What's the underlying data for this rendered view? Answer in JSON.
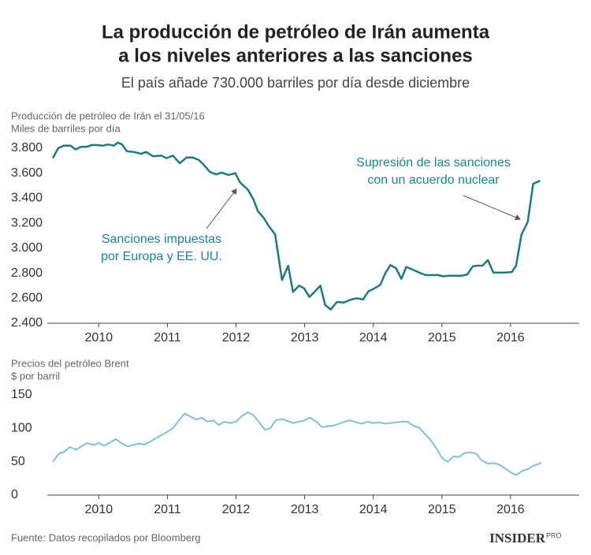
{
  "title": [
    "La producción de petróleo de Irán aumenta",
    "a los niveles anteriores a las sanciones"
  ],
  "subtitle": "El país añade 730.000 barriles por día desde diciembre",
  "chart_data": [
    {
      "type": "line",
      "title": "Producción de petróleo de Irán el 31/05/16",
      "ylabel": "Miles de barriles por día",
      "color": "#1a7c7d",
      "x": [
        2009.33,
        2009.41,
        2009.49,
        2009.59,
        2009.66,
        2009.74,
        2009.82,
        2009.9,
        2009.98,
        2010.06,
        2010.14,
        2010.22,
        2010.28,
        2010.34,
        2010.41,
        2010.51,
        2010.62,
        2010.69,
        2010.79,
        2010.91,
        2010.99,
        2011.08,
        2011.18,
        2011.28,
        2011.37,
        2011.46,
        2011.54,
        2011.62,
        2011.71,
        2011.79,
        2011.89,
        2011.99,
        2012.06,
        2012.17,
        2012.25,
        2012.32,
        2012.4,
        2012.48,
        2012.57,
        2012.67,
        2012.76,
        2012.83,
        2012.92,
        2012.99,
        2013.07,
        2013.15,
        2013.23,
        2013.3,
        2013.38,
        2013.47,
        2013.57,
        2013.68,
        2013.76,
        2013.85,
        2013.93,
        2014.02,
        2014.1,
        2014.18,
        2014.25,
        2014.33,
        2014.41,
        2014.48,
        2014.59,
        2014.67,
        2014.76,
        2014.85,
        2014.94,
        2015.02,
        2015.1,
        2015.2,
        2015.29,
        2015.37,
        2015.45,
        2015.52,
        2015.59,
        2015.67,
        2015.75,
        2015.84,
        2015.93,
        2016.02,
        2016.08,
        2016.16,
        2016.25,
        2016.33,
        2016.43
      ],
      "values": [
        3720,
        3800,
        3820,
        3820,
        3790,
        3810,
        3810,
        3825,
        3825,
        3820,
        3830,
        3820,
        3845,
        3830,
        3775,
        3770,
        3755,
        3770,
        3735,
        3740,
        3720,
        3740,
        3680,
        3725,
        3725,
        3705,
        3660,
        3610,
        3590,
        3605,
        3585,
        3600,
        3525,
        3470,
        3395,
        3295,
        3245,
        3175,
        3110,
        2745,
        2860,
        2650,
        2700,
        2680,
        2610,
        2655,
        2700,
        2545,
        2510,
        2570,
        2565,
        2590,
        2600,
        2590,
        2655,
        2680,
        2705,
        2805,
        2865,
        2840,
        2755,
        2850,
        2825,
        2805,
        2785,
        2785,
        2785,
        2775,
        2780,
        2780,
        2780,
        2790,
        2855,
        2860,
        2860,
        2905,
        2805,
        2805,
        2805,
        2810,
        2860,
        3110,
        3210,
        3515,
        3540
      ],
      "xlim": [
        2009.25,
        2017
      ],
      "xticks": [
        2010,
        2011,
        2012,
        2013,
        2014,
        2015,
        2016
      ],
      "ylim": [
        2400,
        3850
      ],
      "yticks": [
        {
          "value": 2400,
          "label": "2.400"
        },
        {
          "value": 2600,
          "label": "2.600"
        },
        {
          "value": 2800,
          "label": "2.800"
        },
        {
          "value": 3000,
          "label": "3.000"
        },
        {
          "value": 3200,
          "label": "3.200"
        },
        {
          "value": 3400,
          "label": "3.400"
        },
        {
          "value": 3600,
          "label": "3.600"
        },
        {
          "value": 3800,
          "label": "3.800"
        }
      ],
      "annotations": [
        [
          "Sanciones impuestas",
          "por Europa y EE. UU."
        ],
        [
          "Supresión de las sanciones",
          "con un acuerdo nuclear"
        ]
      ]
    },
    {
      "type": "line",
      "title": "Precios del petróleo Brent",
      "ylabel": "$ por barril",
      "color": "#7cc6c8",
      "x": [
        2009.33,
        2009.42,
        2009.5,
        2009.58,
        2009.67,
        2009.75,
        2009.83,
        2009.92,
        2010.0,
        2010.08,
        2010.17,
        2010.25,
        2010.33,
        2010.42,
        2010.5,
        2010.58,
        2010.67,
        2010.75,
        2010.83,
        2010.92,
        2011.0,
        2011.08,
        2011.17,
        2011.25,
        2011.33,
        2011.42,
        2011.5,
        2011.58,
        2011.67,
        2011.75,
        2011.83,
        2011.92,
        2012.0,
        2012.08,
        2012.17,
        2012.25,
        2012.33,
        2012.42,
        2012.5,
        2012.58,
        2012.67,
        2012.75,
        2012.83,
        2012.92,
        2013.0,
        2013.08,
        2013.17,
        2013.25,
        2013.33,
        2013.42,
        2013.5,
        2013.58,
        2013.67,
        2013.75,
        2013.83,
        2013.92,
        2014.0,
        2014.08,
        2014.17,
        2014.25,
        2014.33,
        2014.42,
        2014.5,
        2014.58,
        2014.67,
        2014.75,
        2014.83,
        2014.92,
        2015.0,
        2015.08,
        2015.17,
        2015.25,
        2015.33,
        2015.42,
        2015.5,
        2015.58,
        2015.67,
        2015.75,
        2015.83,
        2015.92,
        2016.0,
        2016.08,
        2016.17,
        2016.25,
        2016.33,
        2016.42,
        2016.45
      ],
      "values": [
        50,
        62,
        65,
        72,
        68,
        73,
        78,
        75,
        78,
        74,
        79,
        84,
        78,
        73,
        75,
        77,
        76,
        80,
        85,
        90,
        95,
        100,
        112,
        122,
        118,
        113,
        116,
        110,
        112,
        105,
        110,
        108,
        110,
        118,
        124,
        120,
        110,
        98,
        100,
        112,
        114,
        111,
        108,
        110,
        112,
        116,
        110,
        102,
        103,
        104,
        107,
        110,
        112,
        109,
        107,
        110,
        108,
        109,
        107,
        108,
        109,
        110,
        110,
        104,
        101,
        92,
        83,
        70,
        56,
        50,
        58,
        57,
        63,
        64,
        62,
        52,
        47,
        48,
        46,
        40,
        34,
        30,
        36,
        39,
        44,
        47,
        49
      ],
      "xlim": [
        2009.25,
        2017
      ],
      "xticks": [
        2010,
        2011,
        2012,
        2013,
        2014,
        2015,
        2016
      ],
      "ylim": [
        0,
        150
      ],
      "yticks": [
        0,
        50,
        100,
        150
      ]
    }
  ],
  "source": "Fuente: Datos recopilados por Bloomberg",
  "logo": {
    "name": "INSIDER",
    "tag": "PRO"
  }
}
